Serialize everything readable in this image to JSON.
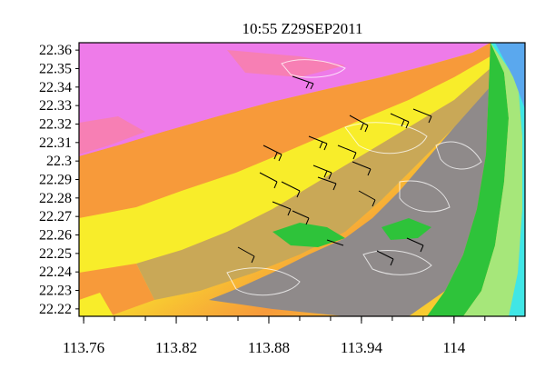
{
  "title": "10:55 Z29SEP2011",
  "map": {
    "latitude_ticks": [
      "22.36",
      "22.35",
      "22.34",
      "22.33",
      "22.32",
      "22.31",
      "22.3",
      "22.29",
      "22.28",
      "22.27",
      "22.26",
      "22.25",
      "22.24",
      "22.23",
      "22.22"
    ],
    "longitude_ticks": [
      "113.76",
      "113.82",
      "113.88",
      "113.94",
      "114"
    ],
    "lon_range": [
      113.757,
      114.046
    ],
    "lat_range": [
      22.216,
      22.364
    ],
    "colors": {
      "magenta": "#ee7be9",
      "pink": "#f77fb4",
      "orange": "#f79a3a",
      "yellow": "#f8ed2a",
      "khaki": "#c9a857",
      "grey": "#8f8a8a",
      "green": "#2ec33a",
      "lightgreen": "#a6e77a",
      "cyan": "#40e6e6",
      "blue": "#5aa8ee"
    }
  }
}
